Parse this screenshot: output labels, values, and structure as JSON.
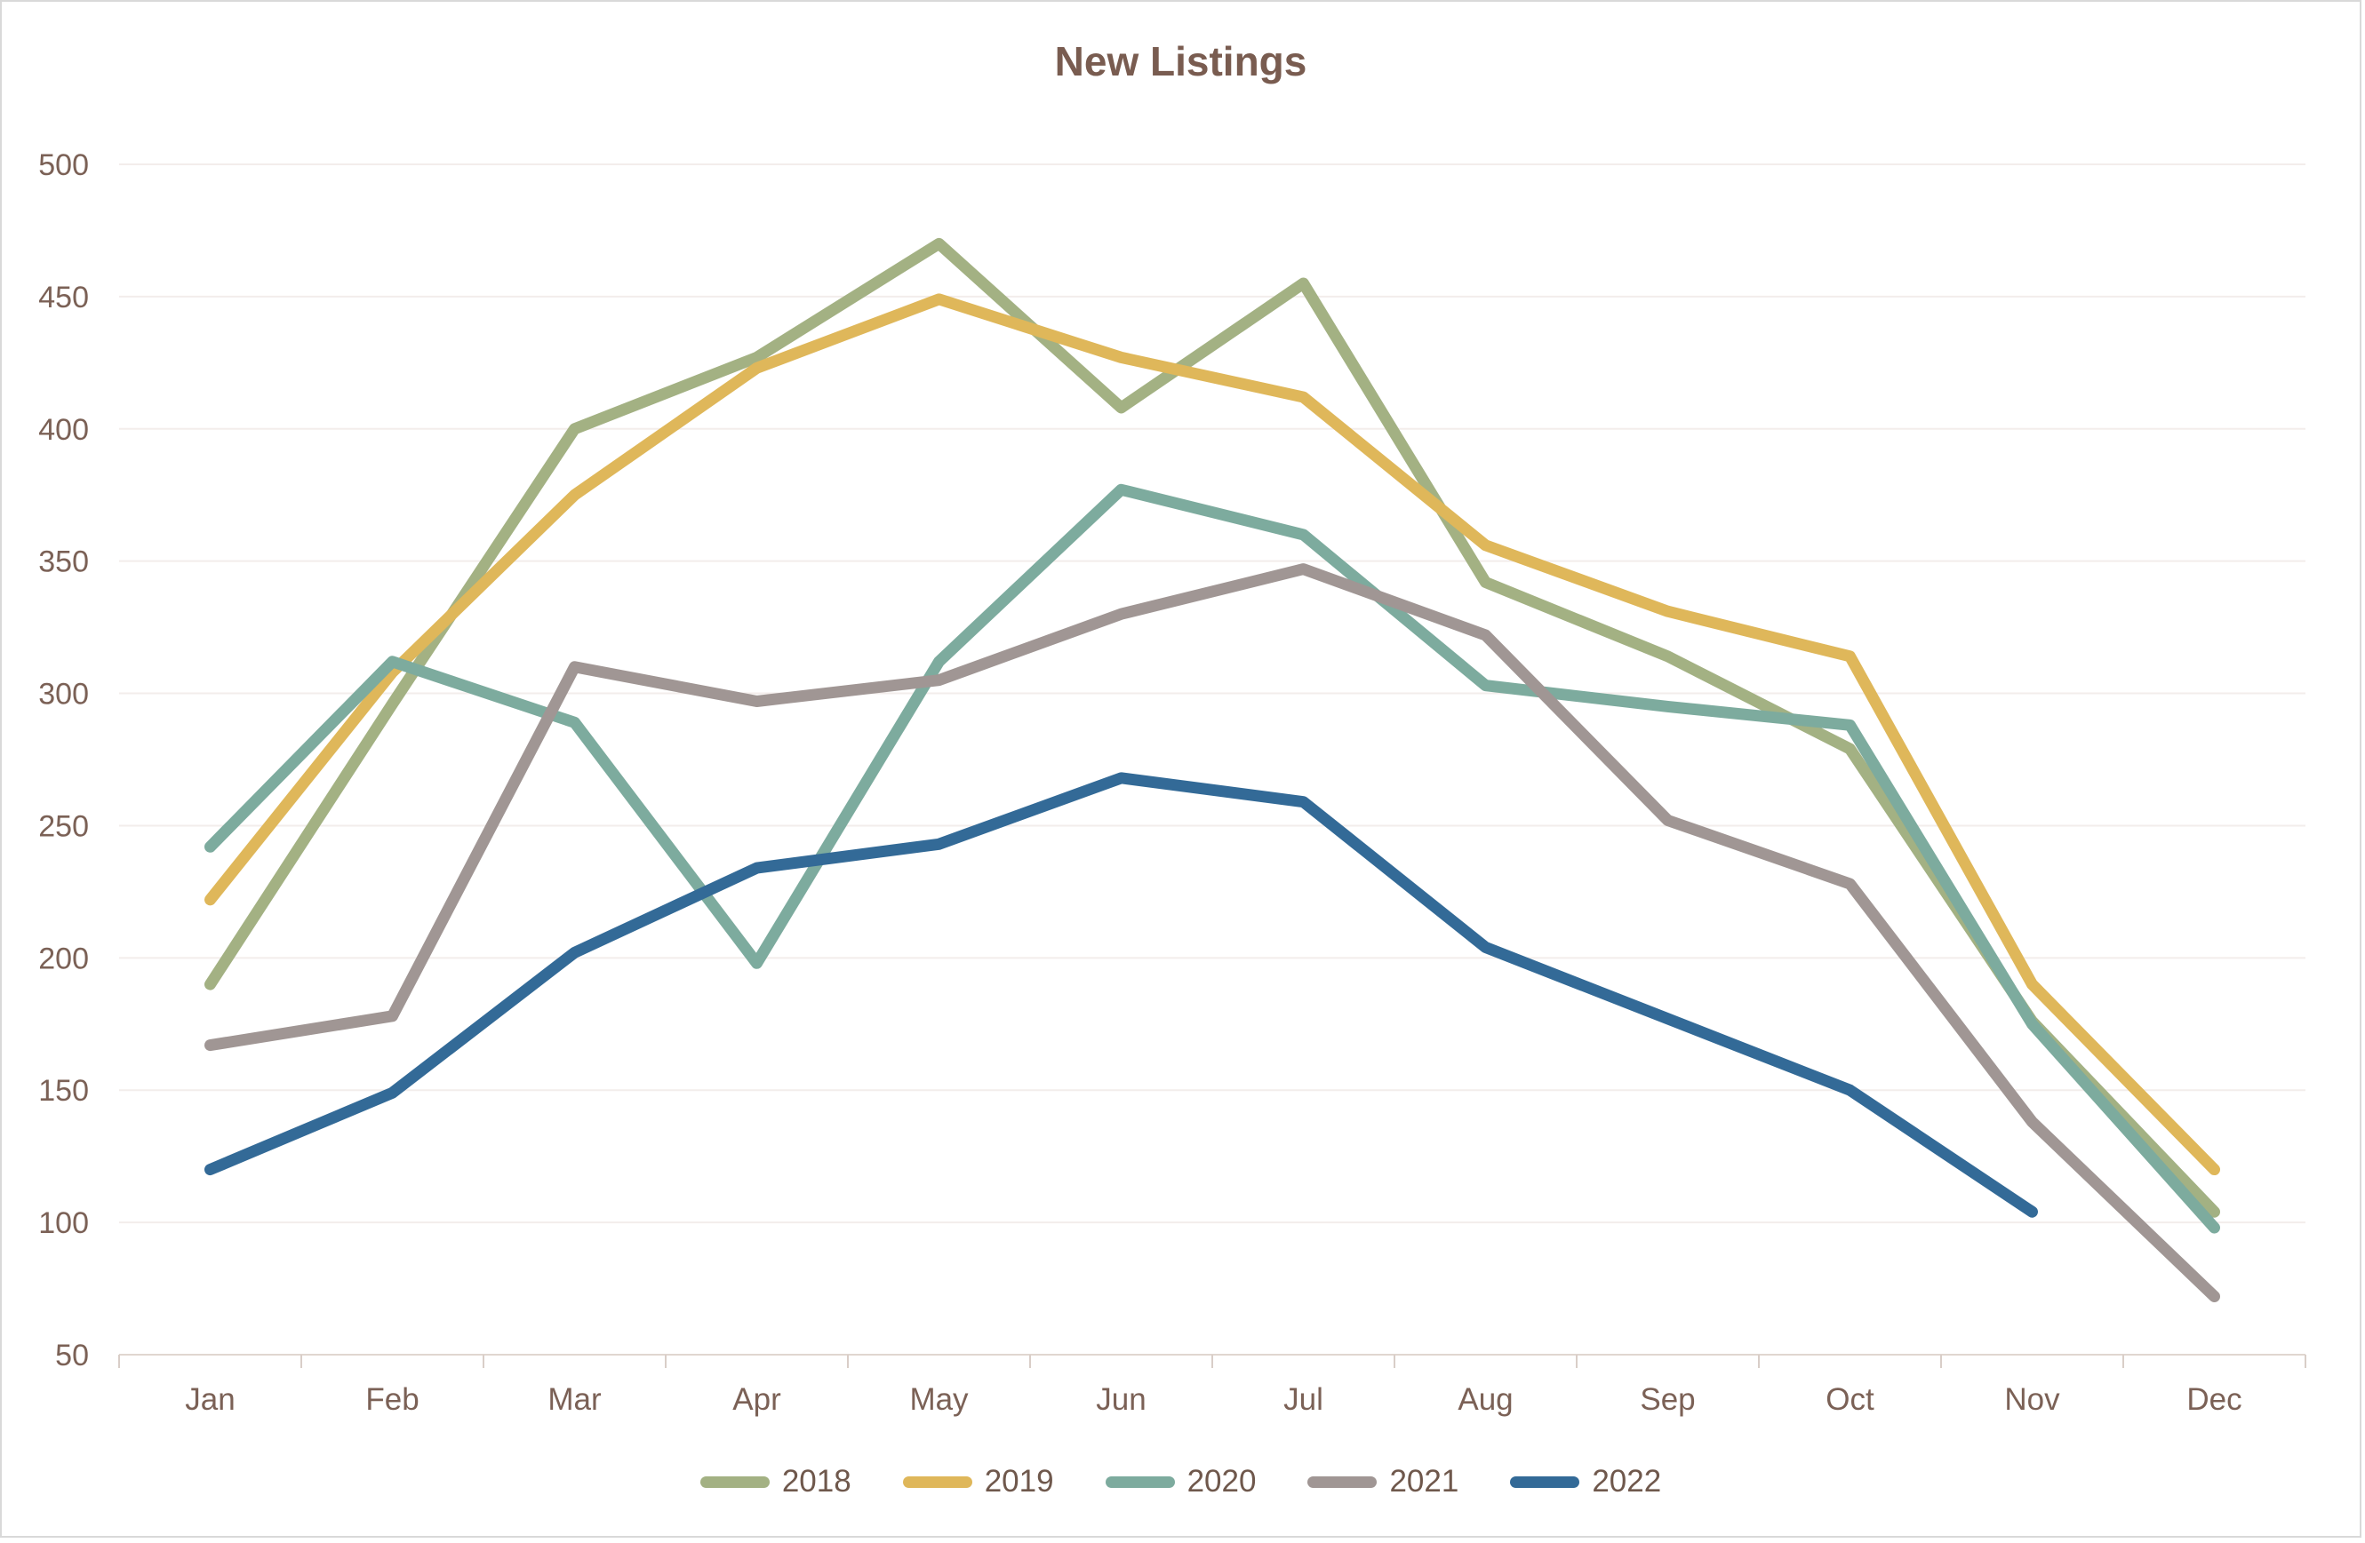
{
  "chart_data": {
    "type": "line",
    "title": "New Listings",
    "categories": [
      "Jan",
      "Feb",
      "Mar",
      "Apr",
      "May",
      "Jun",
      "Jul",
      "Aug",
      "Sep",
      "Oct",
      "Nov",
      "Dec"
    ],
    "series": [
      {
        "name": "2018",
        "color": "#a3b183",
        "values": [
          190,
          296,
          400,
          427,
          470,
          408,
          455,
          342,
          314,
          279,
          176,
          104
        ]
      },
      {
        "name": "2019",
        "color": "#dfb75a",
        "values": [
          222,
          308,
          375,
          423,
          449,
          427,
          412,
          356,
          331,
          314,
          190,
          120
        ]
      },
      {
        "name": "2020",
        "color": "#7dab9e",
        "values": [
          242,
          312,
          289,
          198,
          312,
          377,
          360,
          303,
          295,
          288,
          175,
          98
        ]
      },
      {
        "name": "2021",
        "color": "#a09694",
        "values": [
          167,
          178,
          310,
          297,
          305,
          330,
          347,
          322,
          252,
          228,
          138,
          72
        ]
      },
      {
        "name": "2022",
        "color": "#336a97",
        "values": [
          120,
          149,
          202,
          234,
          243,
          268,
          259,
          204,
          177,
          150,
          104,
          null
        ]
      }
    ],
    "ylim": [
      50,
      500
    ],
    "ytick_step": 50,
    "xlabel": "",
    "ylabel": "",
    "grid": true,
    "legend_position": "bottom"
  },
  "styles": {
    "axis_text_color": "#7b6156",
    "gridline_color": "#f3edeb",
    "axis_line_color": "#e0d6d0",
    "tick_color": "#d9cec8"
  }
}
